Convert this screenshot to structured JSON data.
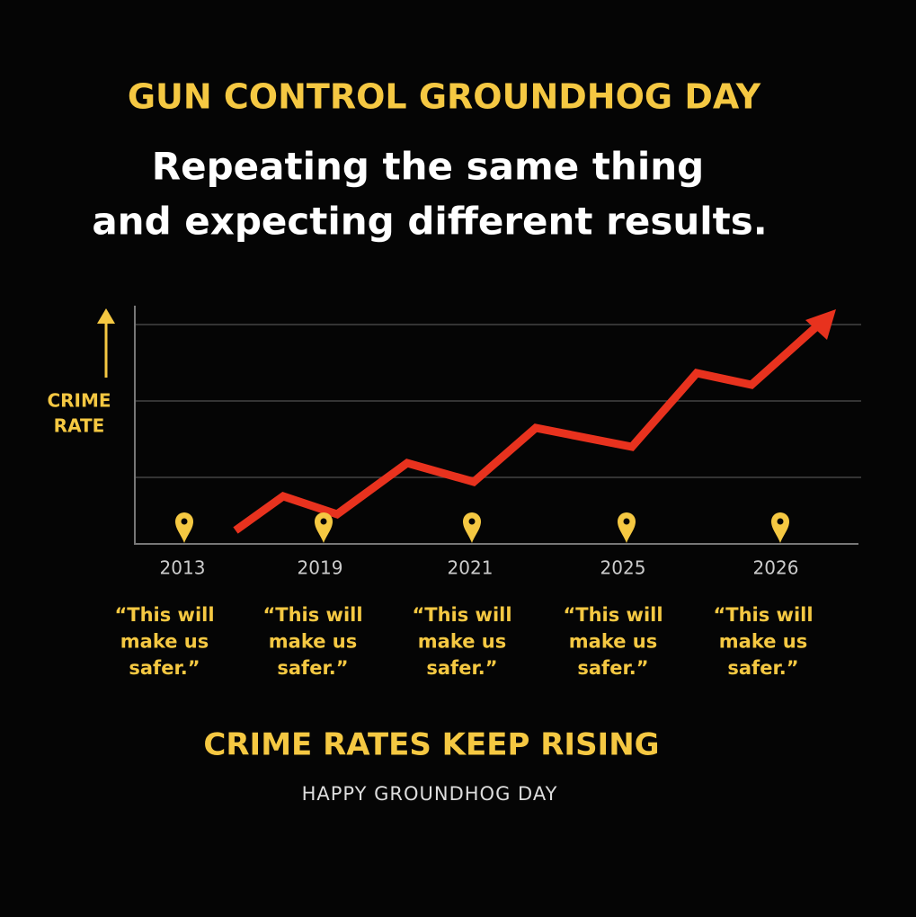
{
  "header": {
    "title": "GUN CONTROL GROUNDHOG DAY",
    "subtitle": [
      "Repeating the same thing",
      "and expecting different results."
    ]
  },
  "axis_label": [
    "CRIME",
    "RATE"
  ],
  "markers": [
    {
      "year": "2013",
      "quote": [
        "“This will",
        "make us",
        "safer.”"
      ]
    },
    {
      "year": "2019",
      "quote": [
        "“This will",
        "make us",
        "safer.”"
      ]
    },
    {
      "year": "2021",
      "quote": [
        "“This will",
        "make us",
        "safer.”"
      ]
    },
    {
      "year": "2025",
      "quote": [
        "“This will",
        "make us",
        "safer.”"
      ]
    },
    {
      "year": "2026",
      "quote": [
        "“This will",
        "make us",
        "safer.”"
      ]
    }
  ],
  "footer": {
    "headline": "CRIME RATES KEEP RISING",
    "tagline": "HAPPY GROUNDHOG DAY"
  }
}
